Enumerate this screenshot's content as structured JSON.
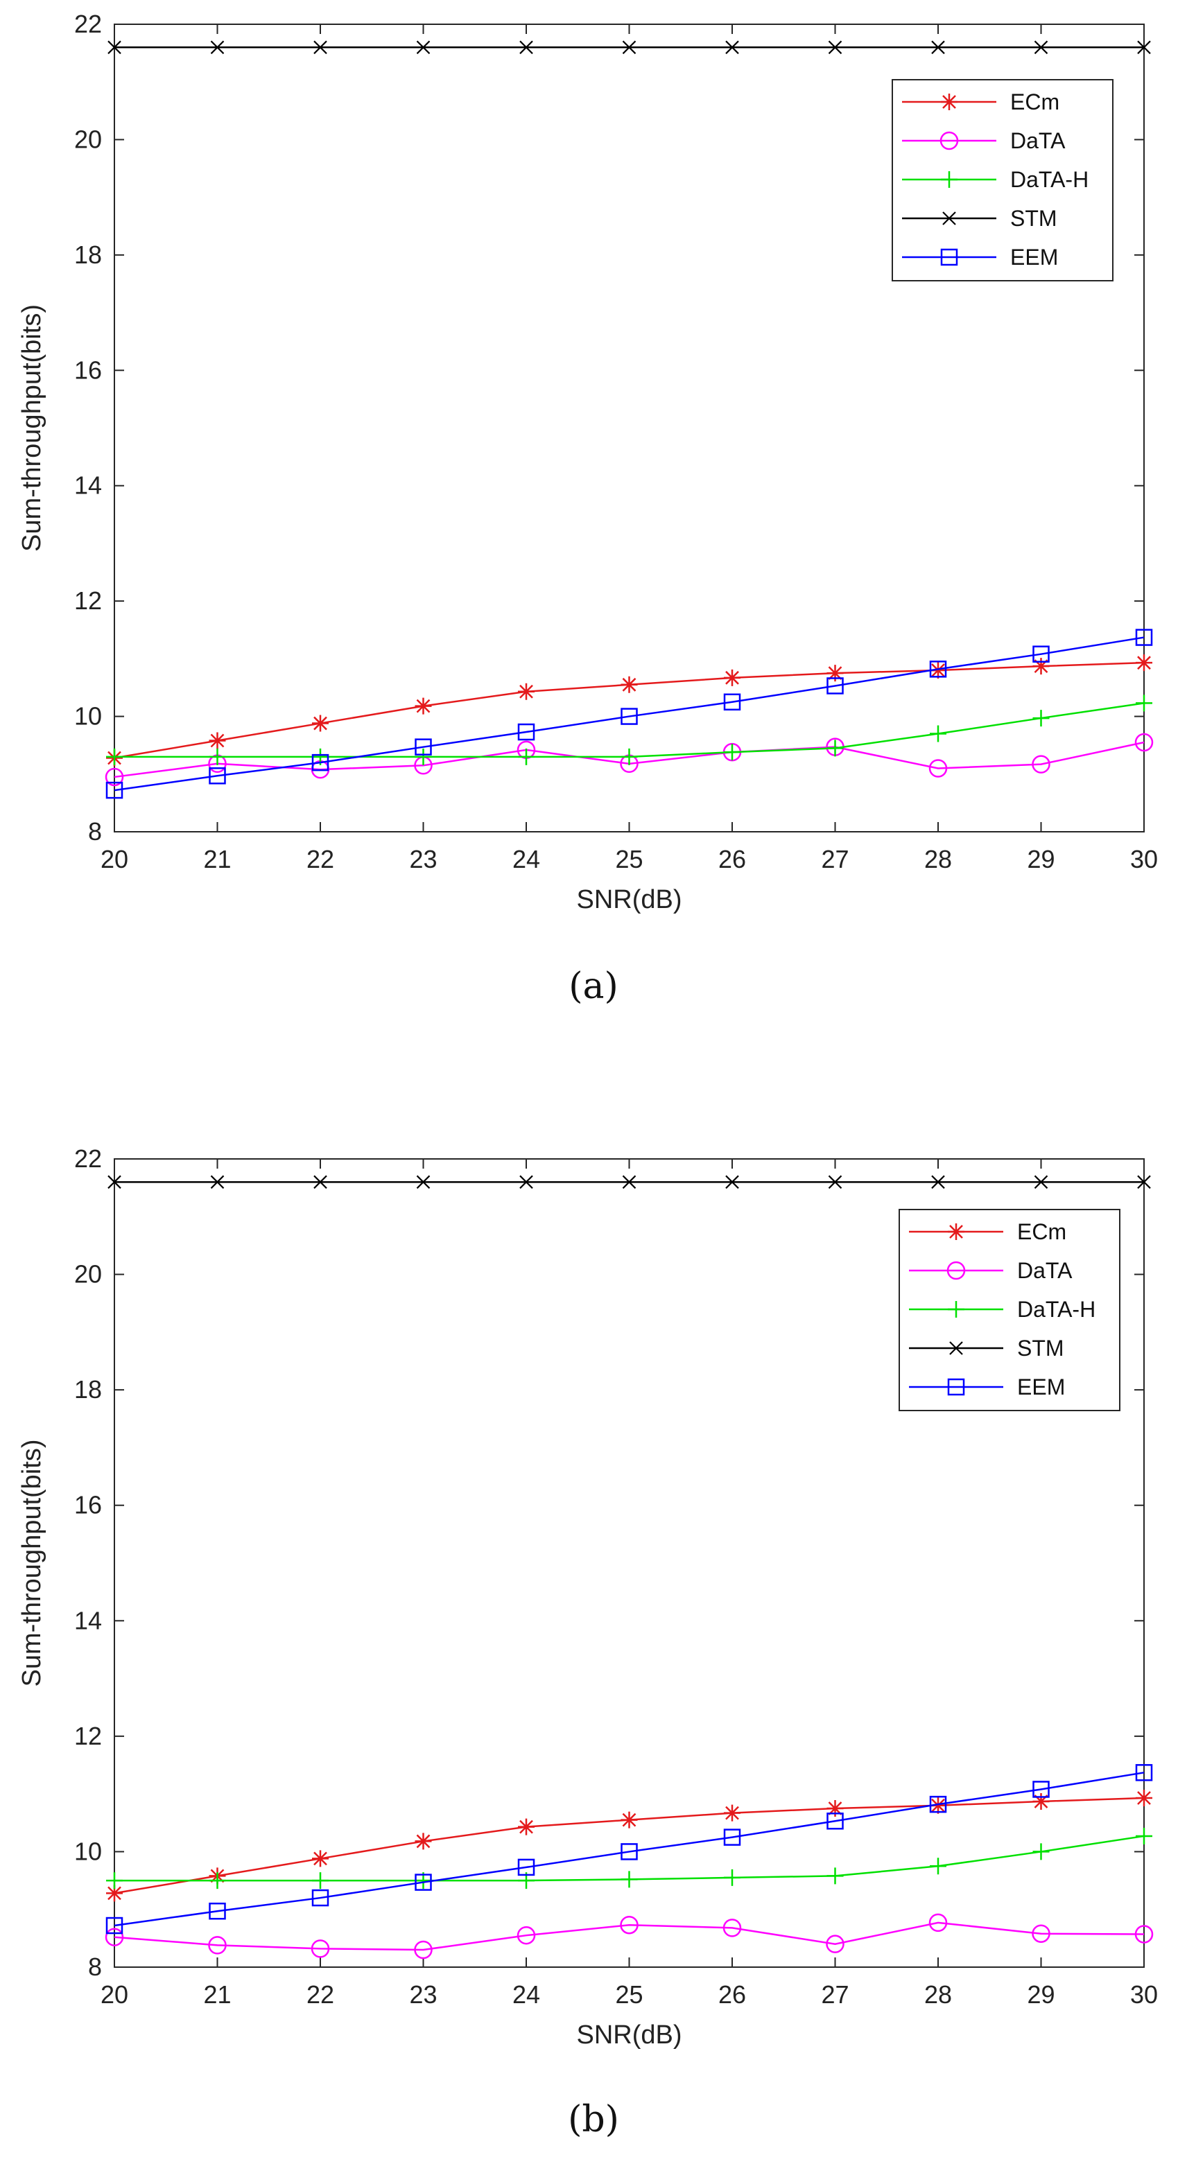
{
  "chart_data": [
    {
      "type": "line",
      "caption": "(a)",
      "xlabel": "SNR(dB)",
      "ylabel": "Sum-throughput(bits)",
      "xlim": [
        20,
        30
      ],
      "ylim": [
        8,
        22
      ],
      "x": [
        20,
        21,
        22,
        23,
        24,
        25,
        26,
        27,
        28,
        29,
        30
      ],
      "xticks": [
        "20",
        "21",
        "22",
        "23",
        "24",
        "25",
        "26",
        "27",
        "28",
        "29",
        "30"
      ],
      "yticks": [
        "8",
        "10",
        "12",
        "14",
        "16",
        "18",
        "20",
        "22"
      ],
      "legend_position": "top-right",
      "series": [
        {
          "name": "ECm",
          "color": "#e41a1c",
          "marker": "asterisk",
          "values": [
            9.28,
            9.58,
            9.88,
            10.18,
            10.43,
            10.55,
            10.67,
            10.75,
            10.8,
            10.87,
            10.93
          ]
        },
        {
          "name": "DaTA",
          "color": "#ff00ff",
          "marker": "circle",
          "values": [
            8.95,
            9.18,
            9.08,
            9.15,
            9.42,
            9.18,
            9.38,
            9.47,
            9.1,
            9.17,
            9.55
          ]
        },
        {
          "name": "DaTA-H",
          "color": "#00e000",
          "marker": "plus",
          "values": [
            9.3,
            9.3,
            9.3,
            9.3,
            9.3,
            9.3,
            9.38,
            9.45,
            9.7,
            9.97,
            10.23
          ]
        },
        {
          "name": "STM",
          "color": "#000000",
          "marker": "cross",
          "values": [
            21.6,
            21.6,
            21.6,
            21.6,
            21.6,
            21.6,
            21.6,
            21.6,
            21.6,
            21.6,
            21.6
          ]
        },
        {
          "name": "EEM",
          "color": "#0000ff",
          "marker": "square",
          "values": [
            8.72,
            8.97,
            9.2,
            9.47,
            9.73,
            10.0,
            10.25,
            10.53,
            10.82,
            11.08,
            11.37
          ]
        }
      ]
    },
    {
      "type": "line",
      "caption": "(b)",
      "xlabel": "SNR(dB)",
      "ylabel": "Sum-throughput(bits)",
      "xlim": [
        20,
        30
      ],
      "ylim": [
        8,
        22
      ],
      "x": [
        20,
        21,
        22,
        23,
        24,
        25,
        26,
        27,
        28,
        29,
        30
      ],
      "xticks": [
        "20",
        "21",
        "22",
        "23",
        "24",
        "25",
        "26",
        "27",
        "28",
        "29",
        "30"
      ],
      "yticks": [
        "8",
        "10",
        "12",
        "14",
        "16",
        "18",
        "20",
        "22"
      ],
      "legend_position": "top-right",
      "series": [
        {
          "name": "ECm",
          "color": "#e41a1c",
          "marker": "asterisk",
          "values": [
            9.28,
            9.58,
            9.88,
            10.18,
            10.43,
            10.55,
            10.67,
            10.75,
            10.8,
            10.87,
            10.93
          ]
        },
        {
          "name": "DaTA",
          "color": "#ff00ff",
          "marker": "circle",
          "values": [
            8.52,
            8.38,
            8.32,
            8.3,
            8.55,
            8.73,
            8.68,
            8.4,
            8.77,
            8.58,
            8.57
          ]
        },
        {
          "name": "DaTA-H",
          "color": "#00e000",
          "marker": "plus",
          "values": [
            9.5,
            9.5,
            9.5,
            9.5,
            9.5,
            9.52,
            9.55,
            9.58,
            9.75,
            10.0,
            10.27
          ]
        },
        {
          "name": "STM",
          "color": "#000000",
          "marker": "cross",
          "values": [
            21.6,
            21.6,
            21.6,
            21.6,
            21.6,
            21.6,
            21.6,
            21.6,
            21.6,
            21.6,
            21.6
          ]
        },
        {
          "name": "EEM",
          "color": "#0000ff",
          "marker": "square",
          "values": [
            8.72,
            8.97,
            9.2,
            9.47,
            9.73,
            10.0,
            10.25,
            10.53,
            10.82,
            11.08,
            11.37
          ]
        }
      ]
    }
  ]
}
